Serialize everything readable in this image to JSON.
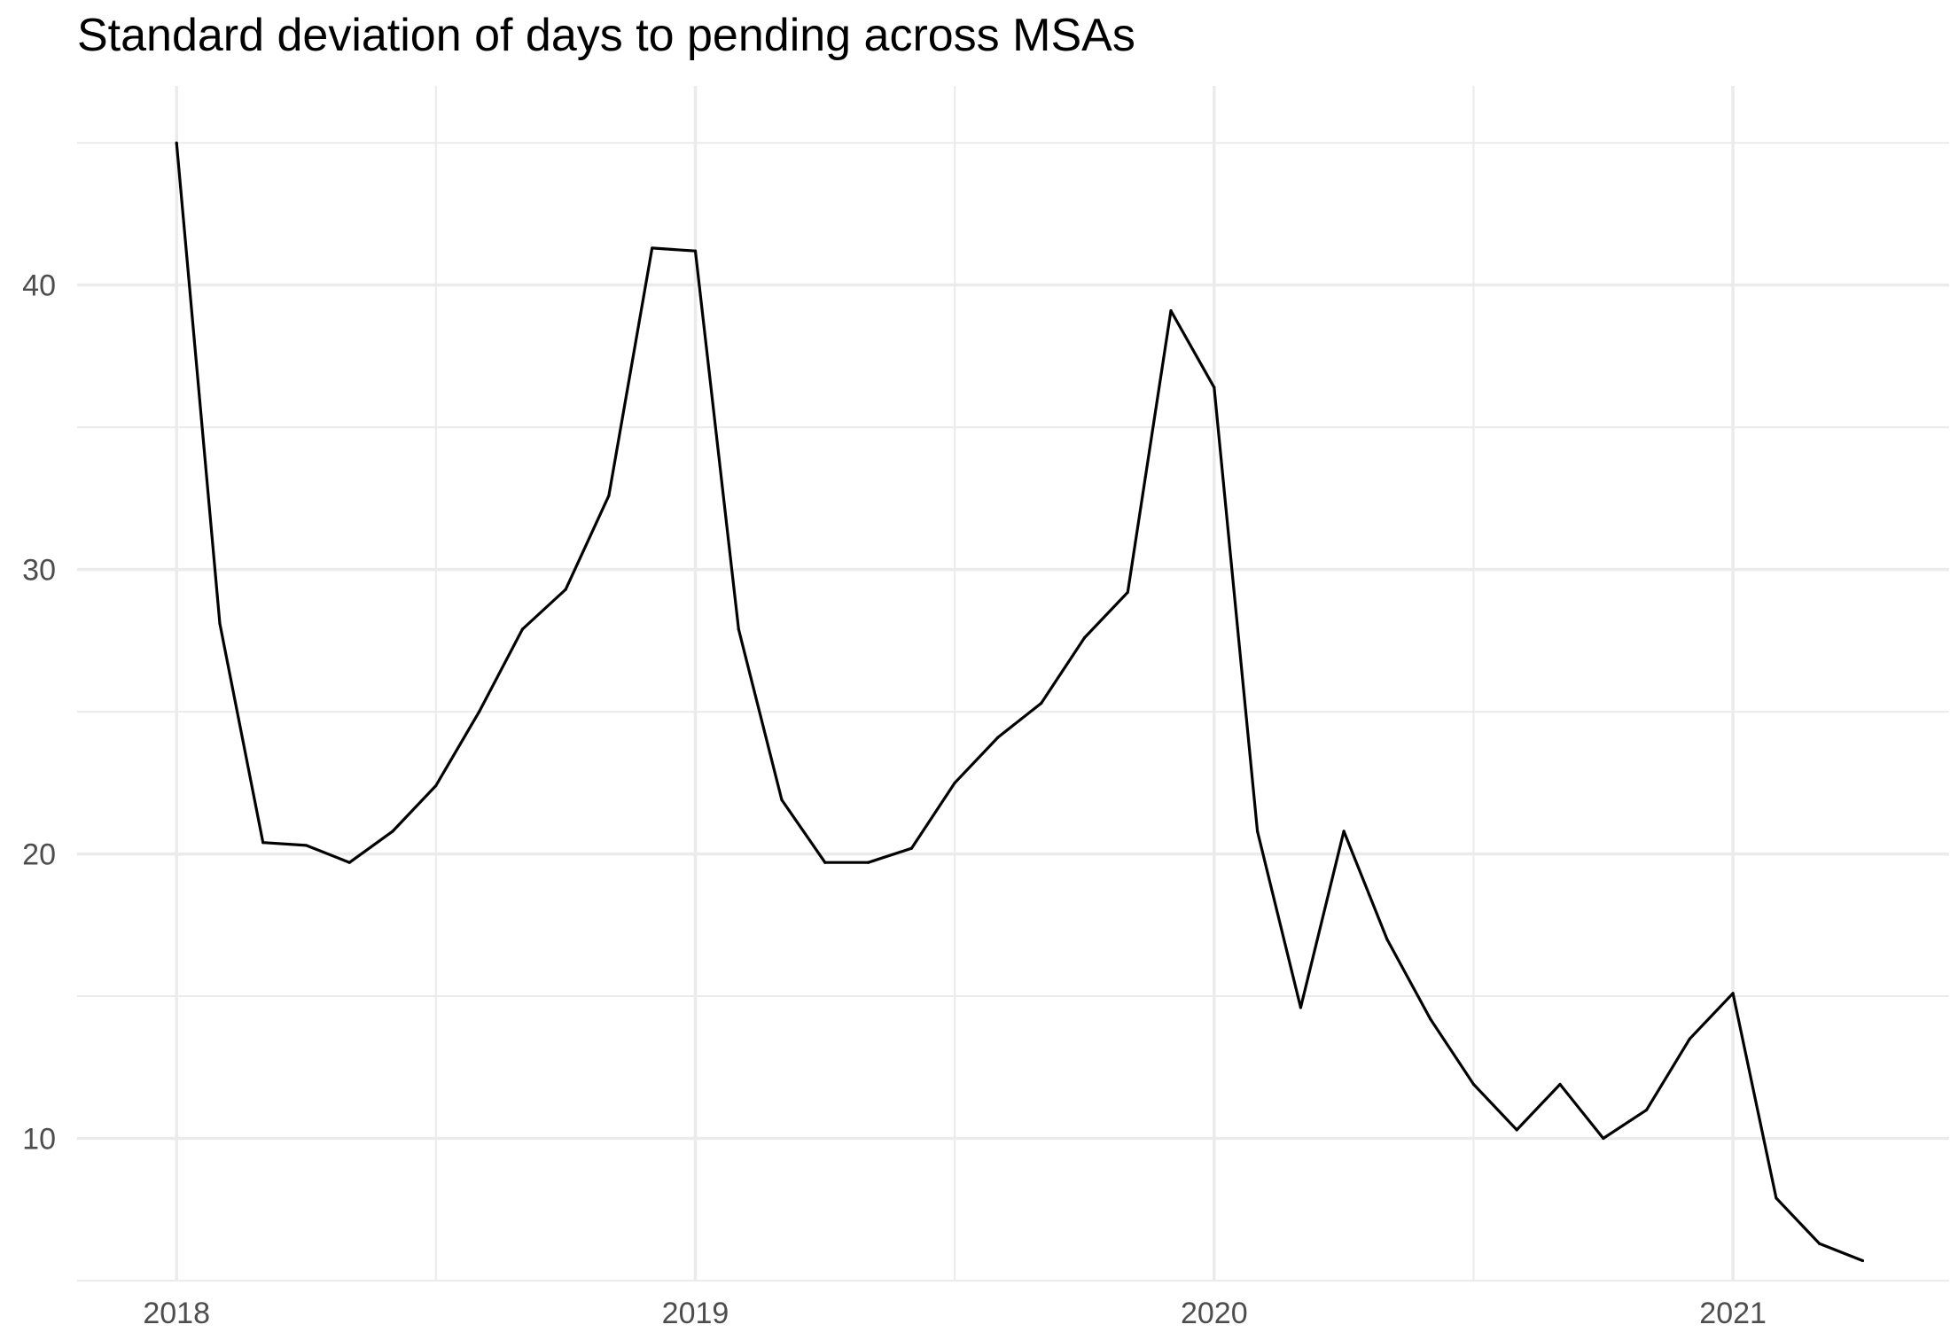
{
  "chart_data": {
    "type": "line",
    "title": "Standard deviation of days to pending across MSAs",
    "xlabel": "",
    "ylabel": "",
    "x": [
      "2018-01",
      "2018-02",
      "2018-03",
      "2018-04",
      "2018-05",
      "2018-06",
      "2018-07",
      "2018-08",
      "2018-09",
      "2018-10",
      "2018-11",
      "2018-12",
      "2019-01",
      "2019-02",
      "2019-03",
      "2019-04",
      "2019-05",
      "2019-06",
      "2019-07",
      "2019-08",
      "2019-09",
      "2019-10",
      "2019-11",
      "2019-12",
      "2020-01",
      "2020-02",
      "2020-03",
      "2020-04",
      "2020-05",
      "2020-06",
      "2020-07",
      "2020-08",
      "2020-09",
      "2020-10",
      "2020-11",
      "2020-12",
      "2021-01",
      "2021-02",
      "2021-03",
      "2021-04"
    ],
    "series": [
      {
        "values": [
          45.0,
          28.1,
          20.4,
          20.3,
          19.7,
          20.8,
          22.4,
          25.0,
          27.9,
          29.3,
          32.6,
          41.3,
          41.2,
          27.9,
          21.9,
          19.7,
          19.7,
          20.2,
          22.5,
          24.1,
          25.3,
          27.6,
          29.2,
          39.1,
          36.4,
          20.8,
          14.6,
          20.8,
          17.0,
          14.2,
          11.9,
          10.3,
          11.9,
          10.0,
          11.0,
          13.5,
          15.1,
          7.9,
          6.3,
          5.7
        ]
      }
    ],
    "x_ticks": [
      "2018",
      "2019",
      "2020",
      "2021"
    ],
    "x_tick_dates": [
      "2018-01",
      "2019-01",
      "2020-01",
      "2021-01"
    ],
    "y_ticks": [
      "10",
      "20",
      "30",
      "40"
    ],
    "ylim": [
      5,
      47
    ],
    "xlim": [
      "2017-11",
      "2021-06"
    ],
    "grid": true,
    "line_color": "#000000",
    "grid_color": "#ebebeb",
    "legend": "none"
  }
}
